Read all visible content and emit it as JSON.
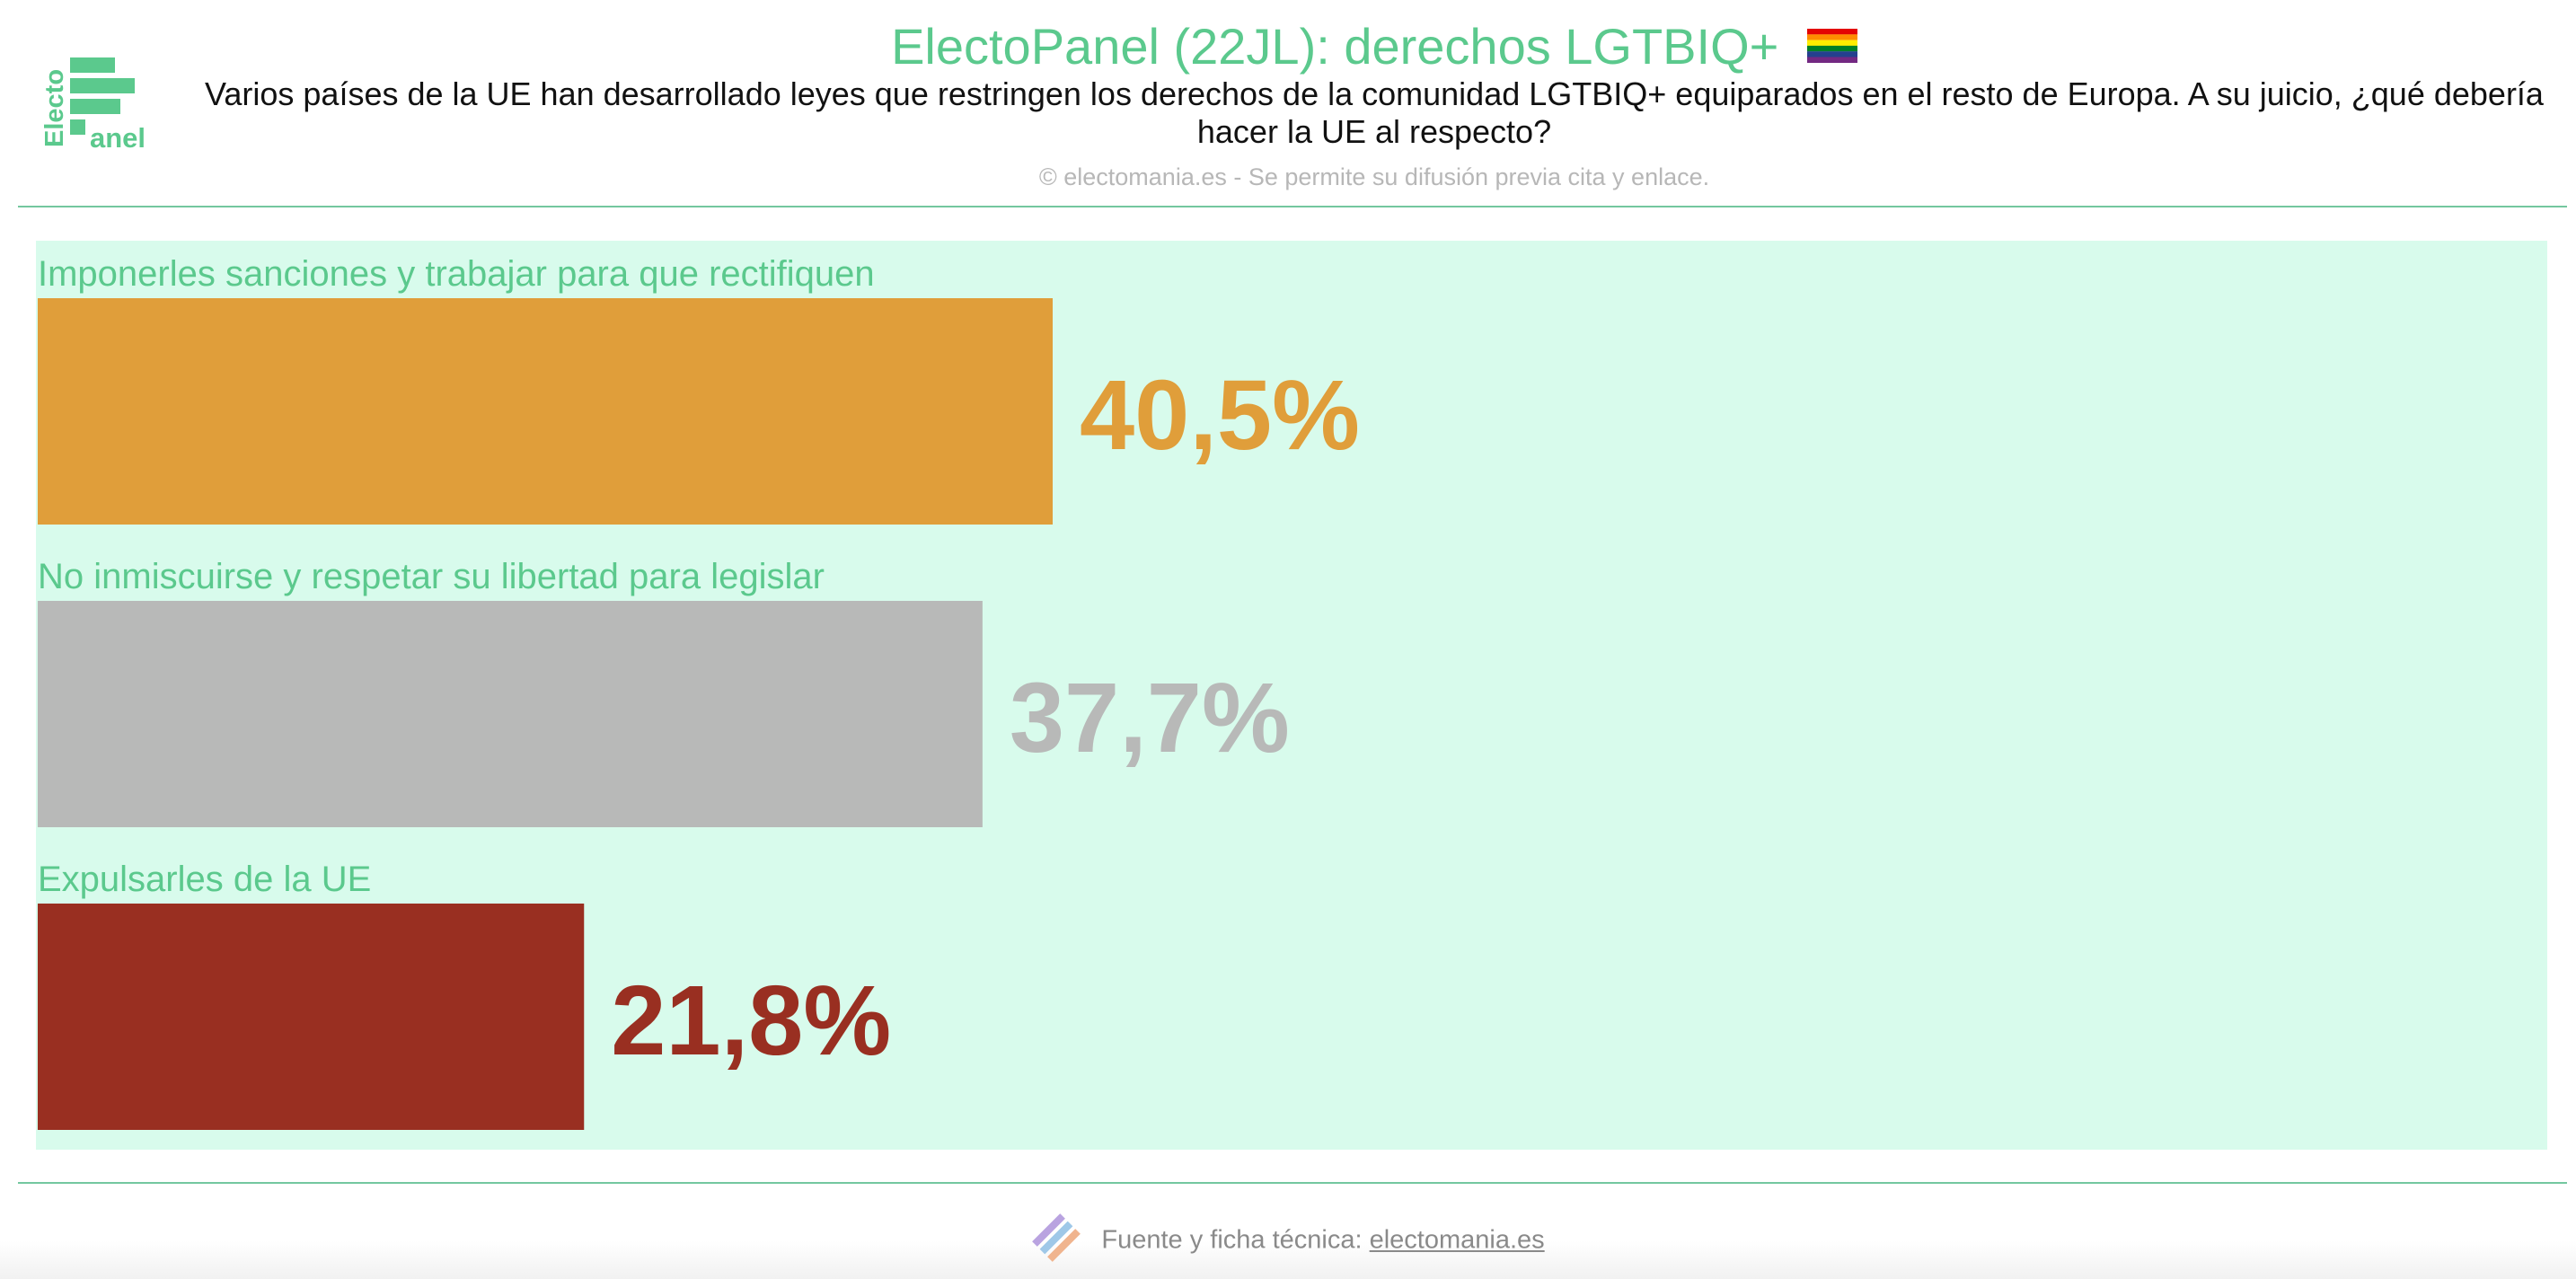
{
  "header": {
    "title": "ElectoPanel (22JL): derechos LGTBIQ+",
    "subtitle": "Varios países de la UE han desarrollado leyes que restringen los derechos de la comunidad LGTBIQ+ equiparados en el resto de Europa. A su juicio, ¿qué debería hacer la UE al respecto?",
    "copyright": "© electomania.es - Se permite su difusión previa cita y enlace.",
    "flag_icon": "rainbow-flag-icon",
    "logo_text_top": "Electo",
    "logo_text_bottom": "anel"
  },
  "colors": {
    "accent": "#5bc98d",
    "plot_background": "#d8fbec",
    "rule": "#74c79f"
  },
  "chart_data": {
    "type": "bar",
    "orientation": "horizontal",
    "categories": [
      "Imponerles sanciones y trabajar para que rectifiquen",
      "No inmiscuirse y respetar su libertad para legislar",
      "Expulsarles de la UE"
    ],
    "values": [
      40.5,
      37.7,
      21.8
    ],
    "value_labels": [
      "40,5%",
      "37,7%",
      "21,8%"
    ],
    "colors": [
      "#e09e3a",
      "#b8b9b8",
      "#992f21"
    ],
    "xlim": [
      0,
      100
    ],
    "grid": false,
    "legend": "none"
  },
  "footer": {
    "label": "Fuente y ficha técnica:",
    "link_text": "electomania.es",
    "icon": "electomania-logo-icon"
  }
}
